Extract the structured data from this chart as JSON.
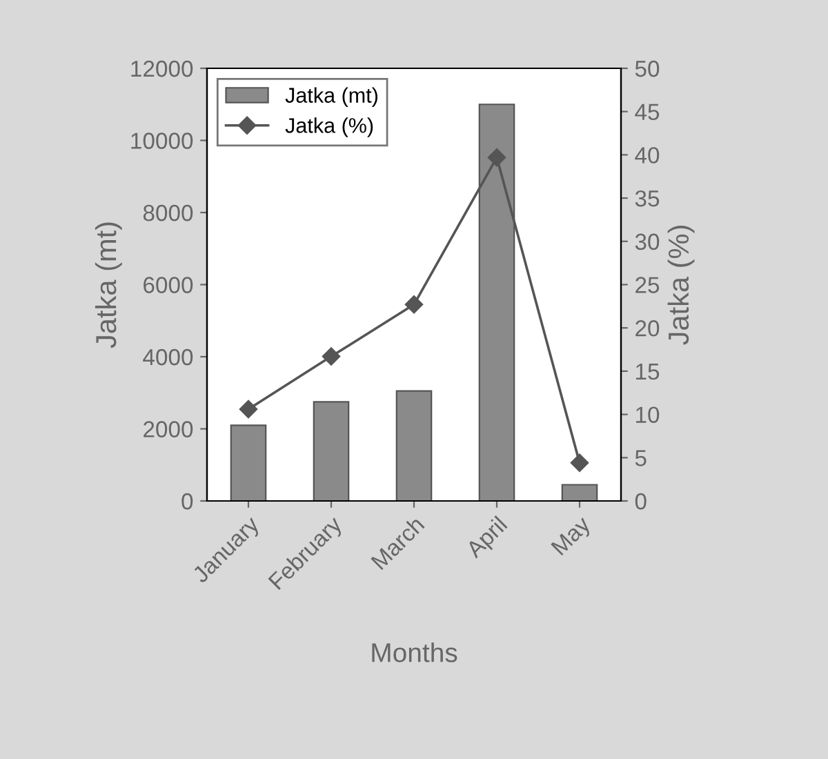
{
  "chart_data": {
    "type": "bar",
    "xlabel": "Months",
    "ylabel": "Jatka (mt)",
    "y2label": "Jatka (%)",
    "categories": [
      "January",
      "February",
      "March",
      "April",
      "May"
    ],
    "series": [
      {
        "name": "Jatka (mt)",
        "color": "#8a8a8a",
        "values": [
          2100,
          2750,
          3050,
          11000,
          450
        ]
      },
      {
        "name": "Jatka (%)",
        "type": "line",
        "axis": "y2",
        "color": "#555555",
        "marker": "diamond",
        "values": [
          10.6,
          16.7,
          22.7,
          39.7,
          4.4
        ]
      }
    ],
    "ylim": [
      0,
      12000
    ],
    "yticks": [
      0,
      2000,
      4000,
      6000,
      8000,
      10000,
      12000
    ],
    "y2lim": [
      0,
      50
    ],
    "y2ticks": [
      0,
      5,
      10,
      15,
      20,
      25,
      30,
      35,
      40,
      45,
      50
    ],
    "legend": "top left",
    "grid": false
  }
}
